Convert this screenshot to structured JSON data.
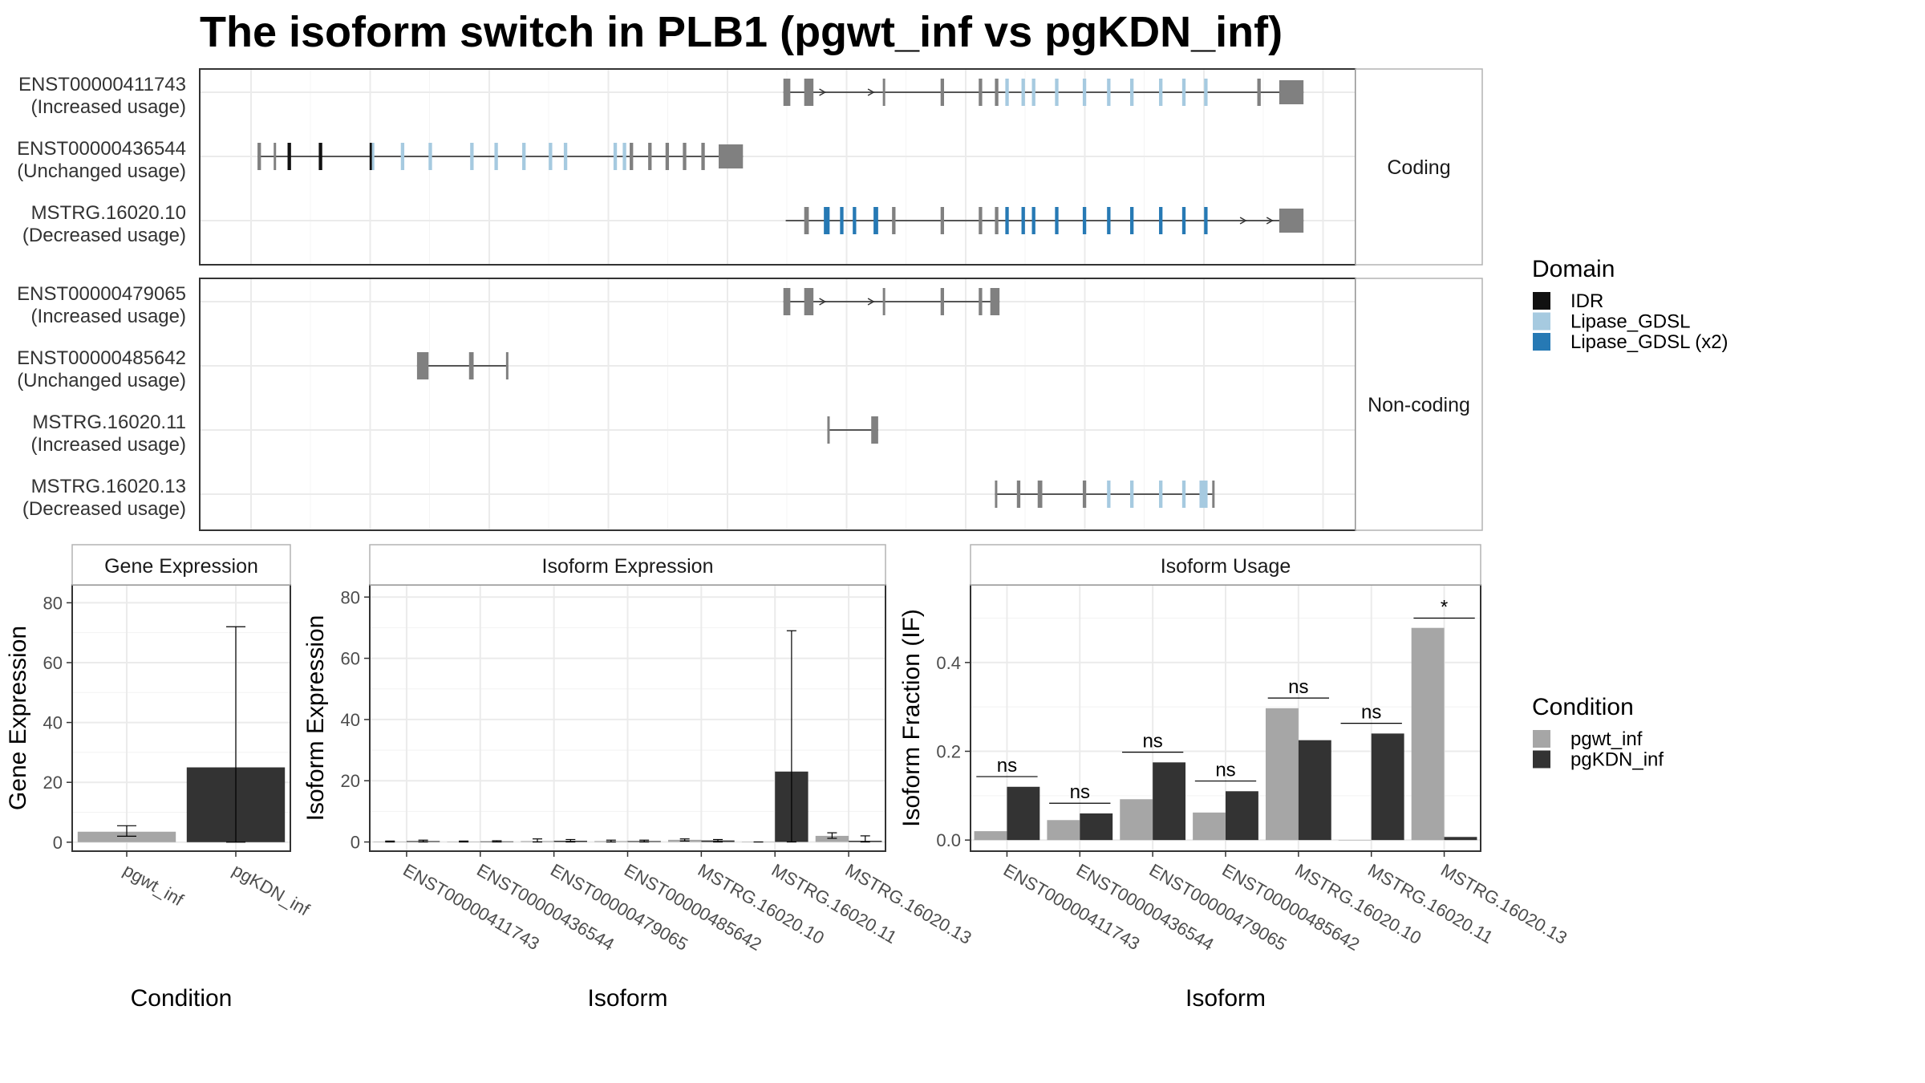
{
  "title": "The isoform switch in PLB1 (pgwt_inf vs pgKDN_inf)",
  "colors": {
    "intron": "#555555",
    "exon": "#808080",
    "IDR": "#111111",
    "Lipase_GDSL": "#a6cae0",
    "Lipase_GDSL_x2": "#2679b4",
    "pgwt_inf": "#a6a6a6",
    "pgKDN_inf": "#333333"
  },
  "structure": {
    "groups": [
      {
        "label": "Coding",
        "transcripts": [
          {
            "name": "ENST00000411743",
            "usage": "(Increased usage)",
            "start": 0.505,
            "end": 0.955,
            "exons": [
              {
                "s": 0.505,
                "e": 0.511,
                "d": "none"
              },
              {
                "s": 0.523,
                "e": 0.531,
                "d": "none"
              },
              {
                "s": 0.591,
                "e": 0.593,
                "d": "none"
              },
              {
                "s": 0.641,
                "e": 0.644,
                "d": "none"
              },
              {
                "s": 0.674,
                "e": 0.677,
                "d": "none"
              },
              {
                "s": 0.688,
                "e": 0.691,
                "d": "none"
              },
              {
                "s": 0.697,
                "e": 0.7,
                "d": "Lipase_GDSL"
              },
              {
                "s": 0.711,
                "e": 0.714,
                "d": "Lipase_GDSL"
              },
              {
                "s": 0.72,
                "e": 0.723,
                "d": "Lipase_GDSL"
              },
              {
                "s": 0.74,
                "e": 0.743,
                "d": "Lipase_GDSL"
              },
              {
                "s": 0.764,
                "e": 0.767,
                "d": "Lipase_GDSL"
              },
              {
                "s": 0.785,
                "e": 0.788,
                "d": "Lipase_GDSL"
              },
              {
                "s": 0.805,
                "e": 0.808,
                "d": "Lipase_GDSL"
              },
              {
                "s": 0.83,
                "e": 0.833,
                "d": "Lipase_GDSL"
              },
              {
                "s": 0.85,
                "e": 0.853,
                "d": "Lipase_GDSL"
              },
              {
                "s": 0.869,
                "e": 0.872,
                "d": "Lipase_GDSL"
              },
              {
                "s": 0.915,
                "e": 0.918,
                "d": "none"
              },
              {
                "s": 0.934,
                "e": 0.955,
                "d": "none",
                "utr": true
              }
            ],
            "arrows": [
              0.541,
              0.583
            ]
          },
          {
            "name": "ENST00000436544",
            "usage": "(Unchanged usage)",
            "start": 0.05,
            "end": 0.47,
            "exons": [
              {
                "s": 0.05,
                "e": 0.053,
                "d": "none"
              },
              {
                "s": 0.064,
                "e": 0.066,
                "d": "none"
              },
              {
                "s": 0.076,
                "e": 0.079,
                "d": "IDR"
              },
              {
                "s": 0.103,
                "e": 0.106,
                "d": "IDR"
              },
              {
                "s": 0.147,
                "e": 0.149,
                "d": "IDR"
              },
              {
                "s": 0.149,
                "e": 0.151,
                "d": "Lipase_GDSL"
              },
              {
                "s": 0.174,
                "e": 0.177,
                "d": "Lipase_GDSL"
              },
              {
                "s": 0.198,
                "e": 0.201,
                "d": "Lipase_GDSL"
              },
              {
                "s": 0.234,
                "e": 0.237,
                "d": "Lipase_GDSL"
              },
              {
                "s": 0.255,
                "e": 0.258,
                "d": "Lipase_GDSL"
              },
              {
                "s": 0.279,
                "e": 0.282,
                "d": "Lipase_GDSL"
              },
              {
                "s": 0.302,
                "e": 0.305,
                "d": "Lipase_GDSL"
              },
              {
                "s": 0.315,
                "e": 0.318,
                "d": "Lipase_GDSL"
              },
              {
                "s": 0.358,
                "e": 0.361,
                "d": "Lipase_GDSL"
              },
              {
                "s": 0.366,
                "e": 0.369,
                "d": "Lipase_GDSL"
              },
              {
                "s": 0.372,
                "e": 0.375,
                "d": "none"
              },
              {
                "s": 0.388,
                "e": 0.391,
                "d": "none"
              },
              {
                "s": 0.403,
                "e": 0.406,
                "d": "none"
              },
              {
                "s": 0.418,
                "e": 0.421,
                "d": "none"
              },
              {
                "s": 0.434,
                "e": 0.437,
                "d": "none"
              },
              {
                "s": 0.449,
                "e": 0.47,
                "d": "none",
                "utr": true
              }
            ],
            "arrows": []
          },
          {
            "name": "MSTRG.16020.10",
            "usage": "(Decreased usage)",
            "start": 0.507,
            "end": 0.955,
            "exons": [
              {
                "s": 0.523,
                "e": 0.527,
                "d": "none"
              },
              {
                "s": 0.54,
                "e": 0.545,
                "d": "Lipase_GDSL_x2"
              },
              {
                "s": 0.554,
                "e": 0.557,
                "d": "Lipase_GDSL_x2"
              },
              {
                "s": 0.565,
                "e": 0.568,
                "d": "Lipase_GDSL_x2"
              },
              {
                "s": 0.583,
                "e": 0.587,
                "d": "Lipase_GDSL_x2"
              },
              {
                "s": 0.599,
                "e": 0.602,
                "d": "none"
              },
              {
                "s": 0.641,
                "e": 0.644,
                "d": "none"
              },
              {
                "s": 0.674,
                "e": 0.677,
                "d": "none"
              },
              {
                "s": 0.688,
                "e": 0.691,
                "d": "none"
              },
              {
                "s": 0.697,
                "e": 0.7,
                "d": "Lipase_GDSL_x2"
              },
              {
                "s": 0.711,
                "e": 0.714,
                "d": "Lipase_GDSL_x2"
              },
              {
                "s": 0.72,
                "e": 0.723,
                "d": "Lipase_GDSL_x2"
              },
              {
                "s": 0.74,
                "e": 0.743,
                "d": "Lipase_GDSL_x2"
              },
              {
                "s": 0.764,
                "e": 0.767,
                "d": "Lipase_GDSL_x2"
              },
              {
                "s": 0.785,
                "e": 0.788,
                "d": "Lipase_GDSL_x2"
              },
              {
                "s": 0.805,
                "e": 0.808,
                "d": "Lipase_GDSL_x2"
              },
              {
                "s": 0.83,
                "e": 0.833,
                "d": "Lipase_GDSL_x2"
              },
              {
                "s": 0.85,
                "e": 0.853,
                "d": "Lipase_GDSL_x2"
              },
              {
                "s": 0.869,
                "e": 0.872,
                "d": "Lipase_GDSL_x2"
              },
              {
                "s": 0.934,
                "e": 0.955,
                "d": "none",
                "utr": true
              }
            ],
            "arrows": [
              0.905,
              0.928
            ]
          }
        ]
      },
      {
        "label": "Non-coding",
        "transcripts": [
          {
            "name": "ENST00000479065",
            "usage": "(Increased usage)",
            "start": 0.505,
            "end": 0.692,
            "exons": [
              {
                "s": 0.505,
                "e": 0.511,
                "d": "none"
              },
              {
                "s": 0.523,
                "e": 0.531,
                "d": "none"
              },
              {
                "s": 0.591,
                "e": 0.593,
                "d": "none"
              },
              {
                "s": 0.641,
                "e": 0.644,
                "d": "none"
              },
              {
                "s": 0.674,
                "e": 0.677,
                "d": "none"
              },
              {
                "s": 0.684,
                "e": 0.692,
                "d": "none"
              }
            ],
            "arrows": [
              0.541,
              0.583
            ]
          },
          {
            "name": "ENST00000485642",
            "usage": "(Unchanged usage)",
            "start": 0.188,
            "end": 0.266,
            "exons": [
              {
                "s": 0.188,
                "e": 0.198,
                "d": "none"
              },
              {
                "s": 0.233,
                "e": 0.237,
                "d": "none"
              },
              {
                "s": 0.265,
                "e": 0.266,
                "d": "none"
              }
            ],
            "arrows": []
          },
          {
            "name": "MSTRG.16020.11",
            "usage": "(Increased usage)",
            "start": 0.543,
            "end": 0.587,
            "exons": [
              {
                "s": 0.543,
                "e": 0.544,
                "d": "none"
              },
              {
                "s": 0.581,
                "e": 0.587,
                "d": "none"
              }
            ],
            "arrows": []
          },
          {
            "name": "MSTRG.16020.13",
            "usage": "(Decreased usage)",
            "start": 0.688,
            "end": 0.877,
            "exons": [
              {
                "s": 0.688,
                "e": 0.689,
                "d": "none"
              },
              {
                "s": 0.707,
                "e": 0.71,
                "d": "none"
              },
              {
                "s": 0.725,
                "e": 0.729,
                "d": "none"
              },
              {
                "s": 0.764,
                "e": 0.767,
                "d": "none"
              },
              {
                "s": 0.785,
                "e": 0.788,
                "d": "Lipase_GDSL"
              },
              {
                "s": 0.805,
                "e": 0.808,
                "d": "Lipase_GDSL"
              },
              {
                "s": 0.83,
                "e": 0.833,
                "d": "Lipase_GDSL"
              },
              {
                "s": 0.85,
                "e": 0.853,
                "d": "Lipase_GDSL"
              },
              {
                "s": 0.865,
                "e": 0.872,
                "d": "Lipase_GDSL"
              },
              {
                "s": 0.876,
                "e": 0.877,
                "d": "none"
              }
            ],
            "arrows": []
          }
        ]
      }
    ]
  },
  "legend_domain": {
    "title": "Domain",
    "items": [
      {
        "label": "IDR",
        "key": "IDR"
      },
      {
        "label": "Lipase_GDSL",
        "key": "Lipase_GDSL"
      },
      {
        "label": "Lipase_GDSL (x2)",
        "key": "Lipase_GDSL_x2"
      }
    ]
  },
  "legend_condition": {
    "title": "Condition",
    "items": [
      {
        "label": "pgwt_inf",
        "key": "pgwt_inf"
      },
      {
        "label": "pgKDN_inf",
        "key": "pgKDN_inf"
      }
    ]
  },
  "chart_data": [
    {
      "type": "bar",
      "title": "Gene Expression",
      "xlabel": "Condition",
      "ylabel": "Gene Expression",
      "categories": [
        "pgwt_inf",
        "pgKDN_inf"
      ],
      "values": [
        3.5,
        25
      ],
      "error": [
        [
          2,
          5.5
        ],
        [
          0,
          72
        ]
      ],
      "ylim": [
        -3,
        86
      ],
      "yticks": [
        0,
        20,
        40,
        60,
        80
      ]
    },
    {
      "type": "bar",
      "title": "Isoform Expression",
      "xlabel": "Isoform",
      "ylabel": "Isoform Expression",
      "categories": [
        "ENST00000411743",
        "ENST00000436544",
        "ENST00000479065",
        "ENST00000485642",
        "MSTRG.16020.10",
        "MSTRG.16020.11",
        "MSTRG.16020.13"
      ],
      "series": [
        {
          "name": "pgwt_inf",
          "values": [
            0.1,
            0.1,
            0.3,
            0.3,
            0.7,
            0.0,
            2.0
          ],
          "error": [
            [
              0,
              0.3
            ],
            [
              0,
              0.3
            ],
            [
              0,
              1
            ],
            [
              0,
              0.6
            ],
            [
              0.3,
              1
            ],
            [
              0,
              0
            ],
            [
              1.2,
              3
            ]
          ]
        },
        {
          "name": "pgKDN_inf",
          "values": [
            0.3,
            0.2,
            0.4,
            0.3,
            0.5,
            23.0,
            0.4
          ],
          "error": [
            [
              0,
              0.6
            ],
            [
              0,
              0.4
            ],
            [
              0,
              0.8
            ],
            [
              0,
              0.6
            ],
            [
              0,
              0.8
            ],
            [
              0,
              69
            ],
            [
              0,
              2
            ]
          ]
        }
      ],
      "ylim": [
        -3,
        84
      ],
      "yticks": [
        0,
        20,
        40,
        60,
        80
      ]
    },
    {
      "type": "bar",
      "title": "Isoform Usage",
      "xlabel": "Isoform",
      "ylabel": "Isoform Fraction (IF)",
      "categories": [
        "ENST00000411743",
        "ENST00000436544",
        "ENST00000479065",
        "ENST00000485642",
        "MSTRG.16020.10",
        "MSTRG.16020.11",
        "MSTRG.16020.13"
      ],
      "series": [
        {
          "name": "pgwt_inf",
          "values": [
            0.02,
            0.045,
            0.092,
            0.062,
            0.297,
            0.0,
            0.478
          ]
        },
        {
          "name": "pgKDN_inf",
          "values": [
            0.12,
            0.06,
            0.175,
            0.11,
            0.225,
            0.24,
            0.007
          ]
        }
      ],
      "significance": [
        "ns",
        "ns",
        "ns",
        "ns",
        "ns",
        "ns",
        "*"
      ],
      "significance_y": [
        0.143,
        0.083,
        0.198,
        0.133,
        0.32,
        0.263,
        0.5
      ],
      "ylim": [
        -0.025,
        0.575
      ],
      "yticks": [
        0.0,
        0.2,
        0.4
      ],
      "ytick_labels": [
        "0.0",
        "0.2",
        "0.4"
      ]
    }
  ]
}
